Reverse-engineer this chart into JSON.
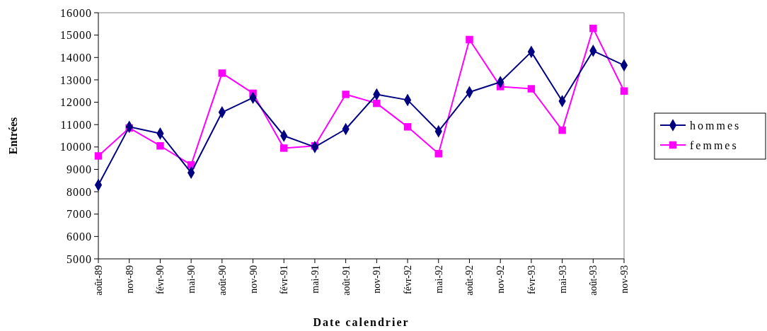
{
  "chart_data": {
    "type": "line",
    "xlabel": "Date calendrier",
    "ylabel": "Entrées",
    "categories": [
      "août-89",
      "nov-89",
      "févr-90",
      "mai-90",
      "août-90",
      "nov-90",
      "févr-91",
      "mai-91",
      "août-91",
      "nov-91",
      "févr-92",
      "mai-92",
      "août-92",
      "nov-92",
      "févr-93",
      "mai-93",
      "août-93",
      "nov-93"
    ],
    "series": [
      {
        "name": "hommes",
        "color": "#000080",
        "marker": "diamond",
        "values": [
          8300,
          10900,
          10600,
          8850,
          11550,
          12200,
          10500,
          10000,
          10800,
          12350,
          12100,
          10700,
          12450,
          12900,
          14250,
          12050,
          14300,
          13650
        ]
      },
      {
        "name": "femmes",
        "color": "#ff00ff",
        "marker": "square",
        "values": [
          9600,
          10850,
          10050,
          9200,
          13300,
          12400,
          9950,
          10050,
          12350,
          11950,
          10900,
          9700,
          14800,
          12700,
          12600,
          10750,
          15300,
          12500
        ]
      }
    ],
    "ylim": [
      5000,
      16000
    ],
    "yticks": [
      5000,
      6000,
      7000,
      8000,
      9000,
      10000,
      11000,
      12000,
      13000,
      14000,
      15000,
      16000
    ],
    "grid": false,
    "legend": "right"
  }
}
